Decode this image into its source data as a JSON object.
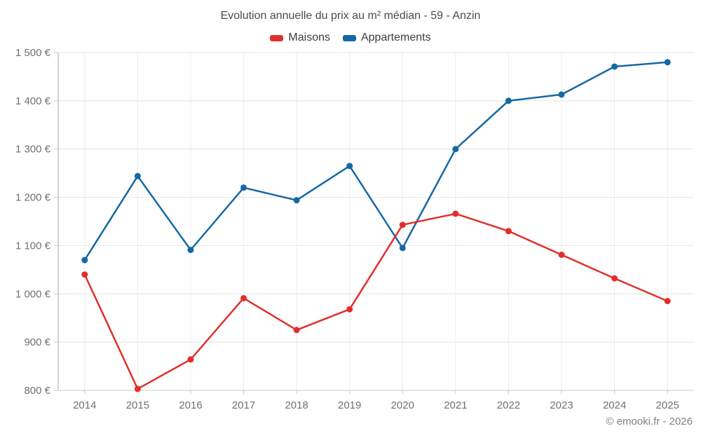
{
  "chart": {
    "title": "Evolution annuelle du prix au m² médian - 59 - Anzin",
    "legend": [
      {
        "label": "Maisons"
      },
      {
        "label": "Appartements"
      }
    ]
  },
  "footer": {
    "copyright": "© emooki.fr - 2026"
  },
  "chart_data": {
    "type": "line",
    "title": "Evolution annuelle du prix au m² médian - 59 - Anzin",
    "categories": [
      "2014",
      "2015",
      "2016",
      "2017",
      "2018",
      "2019",
      "2020",
      "2021",
      "2022",
      "2023",
      "2024",
      "2025"
    ],
    "series": [
      {
        "name": "Maisons",
        "color": "#e0302b",
        "values": [
          1040,
          803,
          864,
          991,
          925,
          968,
          1143,
          1166,
          1130,
          1081,
          1032,
          985
        ]
      },
      {
        "name": "Appartements",
        "color": "#1668a3",
        "values": [
          1070,
          1244,
          1091,
          1220,
          1194,
          1265,
          1095,
          1300,
          1400,
          1413,
          1471,
          1480
        ]
      }
    ],
    "xlabel": "",
    "ylabel": "",
    "ylim": [
      800,
      1500
    ],
    "ytick_values": [
      800,
      900,
      1000,
      1100,
      1200,
      1300,
      1400,
      1500
    ],
    "ytick_labels": [
      "800 €",
      "900 €",
      "1 000 €",
      "1 100 €",
      "1 200 €",
      "1 300 €",
      "1 400 €",
      "1 500 €"
    ],
    "grid": true,
    "legend_position": "top"
  }
}
